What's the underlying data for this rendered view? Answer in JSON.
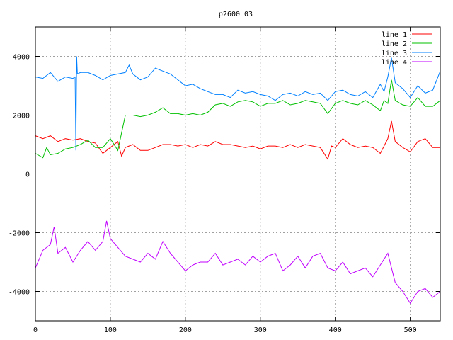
{
  "chart_data": {
    "type": "line",
    "title": "p2600_03",
    "xlabel": "",
    "ylabel": "",
    "xlim": [
      0,
      540
    ],
    "ylim": [
      -5000,
      5000
    ],
    "xticks": [
      0,
      100,
      200,
      300,
      400,
      500
    ],
    "yticks": [
      -4000,
      -2000,
      0,
      2000,
      4000
    ],
    "grid": true,
    "legend_position": "top-right",
    "series": [
      {
        "name": "line 1",
        "color": "#ff0000",
        "x": [
          0,
          10,
          20,
          30,
          40,
          50,
          60,
          70,
          80,
          90,
          100,
          110,
          115,
          120,
          130,
          140,
          150,
          160,
          170,
          180,
          190,
          200,
          210,
          220,
          230,
          240,
          250,
          260,
          270,
          280,
          290,
          300,
          310,
          320,
          330,
          340,
          350,
          360,
          370,
          380,
          390,
          395,
          400,
          410,
          420,
          430,
          440,
          450,
          460,
          465,
          470,
          475,
          480,
          490,
          500,
          510,
          520,
          530,
          540
        ],
        "y": [
          1300,
          1200,
          1300,
          1100,
          1200,
          1150,
          1200,
          1100,
          1050,
          700,
          900,
          1100,
          600,
          900,
          1000,
          800,
          800,
          900,
          1000,
          1000,
          950,
          1000,
          900,
          1000,
          950,
          1100,
          1000,
          1000,
          950,
          900,
          950,
          850,
          950,
          950,
          900,
          1000,
          900,
          1000,
          950,
          900,
          500,
          950,
          900,
          1200,
          1000,
          900,
          950,
          900,
          700,
          950,
          1200,
          1800,
          1100,
          900,
          750,
          1100,
          1200,
          900,
          900
        ]
      },
      {
        "name": "line 2",
        "color": "#00c000",
        "x": [
          0,
          10,
          15,
          20,
          30,
          40,
          50,
          60,
          70,
          80,
          90,
          100,
          110,
          115,
          120,
          130,
          140,
          150,
          160,
          170,
          180,
          190,
          200,
          210,
          220,
          230,
          240,
          250,
          260,
          270,
          280,
          290,
          300,
          310,
          320,
          330,
          340,
          350,
          360,
          370,
          380,
          390,
          400,
          410,
          420,
          430,
          440,
          450,
          460,
          465,
          470,
          475,
          480,
          490,
          500,
          510,
          520,
          530,
          540
        ],
        "y": [
          700,
          550,
          900,
          650,
          700,
          850,
          900,
          1000,
          1150,
          900,
          900,
          1200,
          800,
          1400,
          2000,
          2000,
          1950,
          2000,
          2100,
          2250,
          2050,
          2050,
          2000,
          2050,
          2000,
          2100,
          2350,
          2400,
          2300,
          2450,
          2500,
          2450,
          2300,
          2400,
          2400,
          2500,
          2350,
          2400,
          2500,
          2450,
          2400,
          2050,
          2400,
          2500,
          2400,
          2350,
          2500,
          2350,
          2150,
          2500,
          2400,
          3200,
          2500,
          2350,
          2300,
          2600,
          2300,
          2300,
          2500
        ]
      },
      {
        "name": "line 3",
        "color": "#0080ff",
        "x": [
          0,
          10,
          20,
          30,
          40,
          50,
          53,
          54,
          55,
          56,
          60,
          70,
          80,
          90,
          100,
          110,
          120,
          125,
          130,
          140,
          150,
          160,
          170,
          180,
          190,
          200,
          210,
          220,
          230,
          240,
          250,
          260,
          270,
          280,
          290,
          300,
          310,
          320,
          330,
          340,
          350,
          360,
          370,
          380,
          390,
          400,
          410,
          420,
          430,
          440,
          450,
          460,
          465,
          470,
          475,
          480,
          490,
          500,
          510,
          520,
          530,
          540
        ],
        "y": [
          3300,
          3250,
          3450,
          3150,
          3300,
          3250,
          3300,
          800,
          4000,
          3400,
          3450,
          3450,
          3350,
          3200,
          3350,
          3400,
          3450,
          3700,
          3400,
          3200,
          3300,
          3600,
          3500,
          3400,
          3200,
          3000,
          3050,
          2900,
          2800,
          2700,
          2700,
          2600,
          2850,
          2750,
          2800,
          2700,
          2650,
          2500,
          2700,
          2750,
          2650,
          2800,
          2700,
          2750,
          2500,
          2800,
          2850,
          2700,
          2650,
          2800,
          2600,
          3050,
          2800,
          3300,
          3950,
          3100,
          2900,
          2600,
          3000,
          2750,
          2850,
          3500
        ]
      },
      {
        "name": "line 4",
        "color": "#c000ff",
        "x": [
          0,
          10,
          20,
          25,
          30,
          40,
          50,
          60,
          70,
          80,
          90,
          95,
          100,
          110,
          120,
          130,
          140,
          150,
          160,
          170,
          180,
          190,
          200,
          210,
          220,
          230,
          240,
          250,
          260,
          270,
          280,
          290,
          300,
          310,
          320,
          330,
          340,
          350,
          360,
          370,
          380,
          390,
          400,
          410,
          420,
          430,
          440,
          450,
          460,
          470,
          480,
          490,
          500,
          510,
          520,
          530,
          540
        ],
        "y": [
          -3200,
          -2600,
          -2400,
          -1800,
          -2700,
          -2500,
          -3000,
          -2600,
          -2300,
          -2600,
          -2300,
          -1600,
          -2200,
          -2500,
          -2800,
          -2900,
          -3000,
          -2700,
          -2900,
          -2300,
          -2700,
          -3000,
          -3300,
          -3100,
          -3000,
          -3000,
          -2700,
          -3100,
          -3000,
          -2900,
          -3100,
          -2800,
          -3000,
          -2800,
          -2700,
          -3300,
          -3100,
          -2800,
          -3200,
          -2800,
          -2700,
          -3200,
          -3300,
          -3000,
          -3400,
          -3300,
          -3200,
          -3500,
          -3100,
          -2700,
          -3700,
          -4000,
          -4400,
          -4000,
          -3900,
          -4200,
          -4000
        ]
      }
    ]
  }
}
